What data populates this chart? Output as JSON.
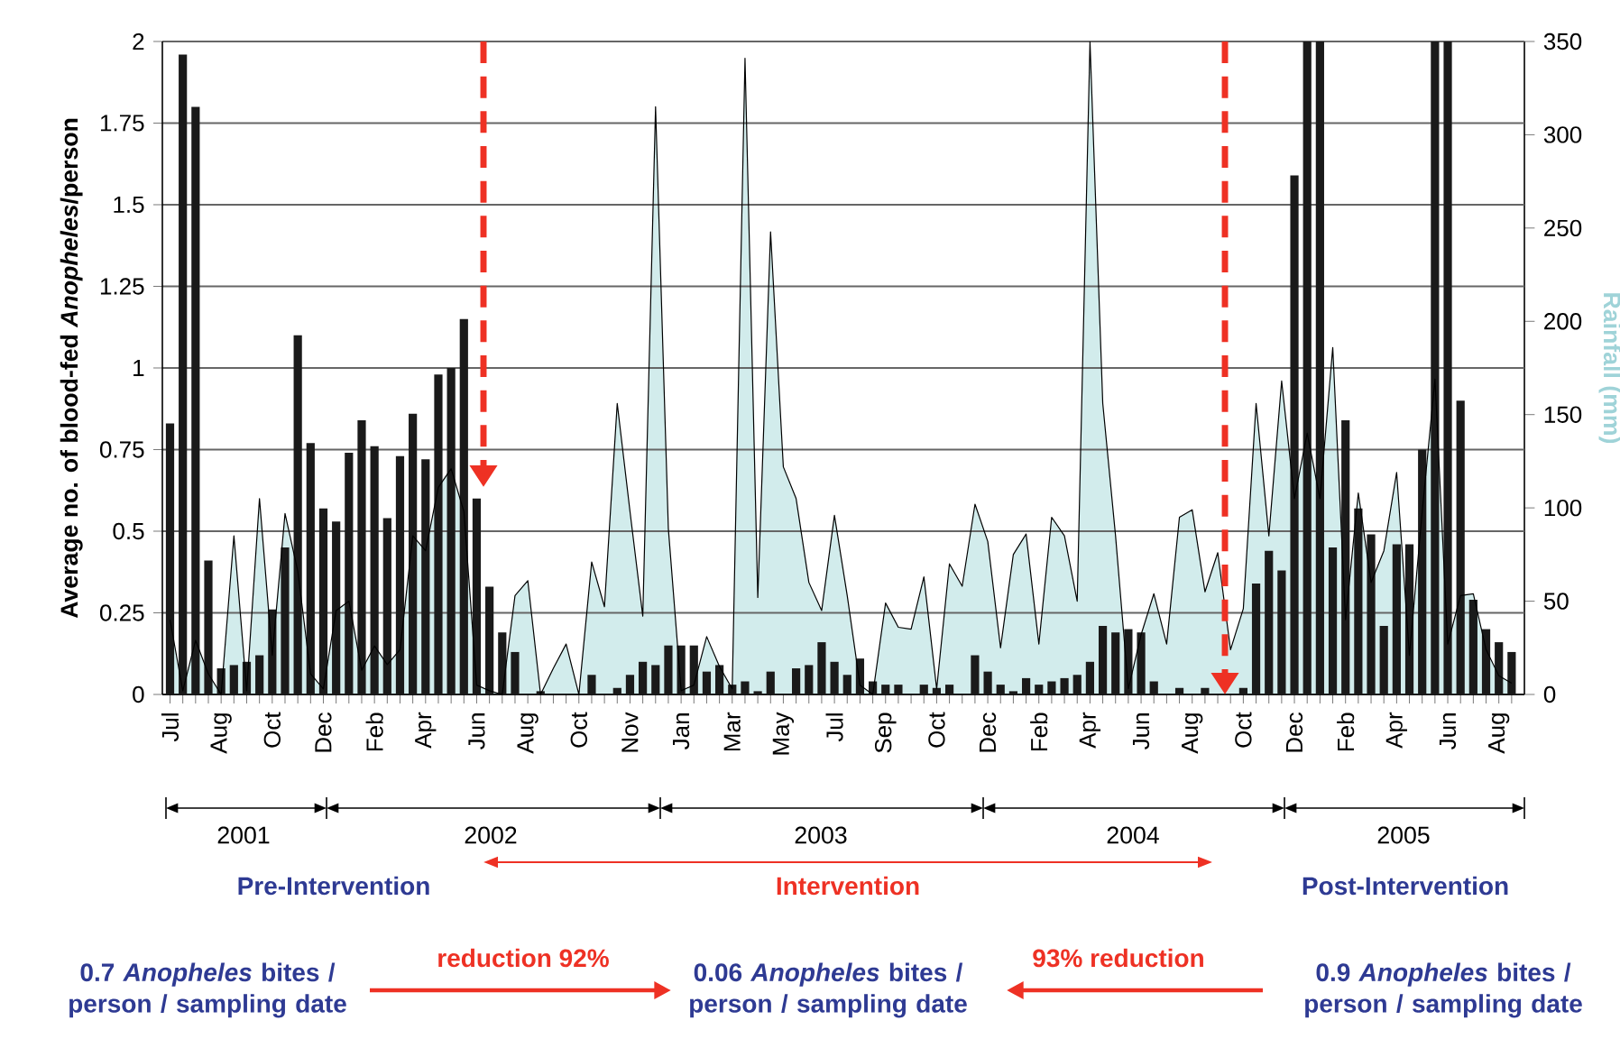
{
  "chart_data": {
    "type": "bar",
    "ylabel": "Average no. of blood-fed *Anopheles*/person",
    "y2label": "Rainfall (mm)",
    "categories": [
      "Jul",
      null,
      null,
      null,
      "Aug",
      null,
      null,
      null,
      "Oct",
      null,
      null,
      null,
      "Dec",
      null,
      null,
      null,
      "Feb",
      null,
      null,
      null,
      "Apr",
      null,
      null,
      null,
      "Jun",
      null,
      null,
      null,
      "Aug",
      null,
      null,
      null,
      "Oct",
      null,
      null,
      null,
      "Nov",
      null,
      null,
      null,
      "Jan",
      null,
      null,
      null,
      "Mar",
      null,
      null,
      null,
      "May",
      null,
      null,
      null,
      "Jul",
      null,
      null,
      null,
      "Sep",
      null,
      null,
      null,
      "Oct",
      null,
      null,
      null,
      "Dec",
      null,
      null,
      null,
      "Feb",
      null,
      null,
      null,
      "Apr",
      null,
      null,
      null,
      "Jun",
      null,
      null,
      null,
      "Aug",
      null,
      null,
      null,
      "Oct",
      null,
      null,
      null,
      "Dec",
      null,
      null,
      null,
      "Feb",
      null,
      null,
      null,
      "Apr",
      null,
      null,
      null,
      "Jun",
      null,
      null,
      null,
      "Aug",
      null
    ],
    "series": [
      {
        "type": "area",
        "axis": "y2",
        "color": "#d2ecec",
        "values": [
          40,
          2,
          29,
          11,
          0,
          85,
          2,
          105,
          21,
          97,
          66,
          11,
          3,
          45,
          50,
          13,
          26,
          16,
          24,
          85,
          77,
          111,
          121,
          98,
          5,
          2,
          0,
          53,
          61,
          0,
          14,
          27,
          0,
          71,
          47,
          156,
          98,
          42,
          315,
          89,
          2,
          5,
          31,
          15,
          3,
          341,
          52,
          248,
          122,
          105,
          60,
          45,
          96,
          53,
          5,
          0,
          49,
          36,
          35,
          63,
          3,
          70,
          58,
          102,
          82,
          25,
          75,
          86,
          27,
          95,
          85,
          50,
          350,
          156,
          85,
          3,
          32,
          54,
          27,
          95,
          99,
          55,
          76,
          24,
          46,
          156,
          85,
          168,
          105,
          140,
          105,
          186,
          40,
          108,
          60,
          77,
          119,
          21,
          98,
          169,
          27,
          53,
          54,
          24,
          10,
          6
        ]
      },
      {
        "color": "#1a1a1a",
        "values": [
          0.83,
          1.96,
          1.8,
          0.41,
          0.08,
          0.09,
          0.1,
          0.12,
          0.26,
          0.45,
          1.1,
          0.77,
          0.57,
          0.53,
          0.74,
          0.84,
          0.76,
          0.54,
          0.73,
          0.86,
          0.72,
          0.98,
          1.0,
          1.15,
          0.6,
          0.33,
          0.19,
          0.13,
          0,
          0.01,
          0,
          0,
          0,
          0.06,
          0,
          0.02,
          0.06,
          0.1,
          0.09,
          0.15,
          0.15,
          0.15,
          0.07,
          0.09,
          0.03,
          0.04,
          0.01,
          0.07,
          0,
          0.08,
          0.09,
          0.16,
          0.1,
          0.06,
          0.11,
          0.04,
          0.03,
          0.03,
          0,
          0.03,
          0.02,
          0.03,
          0,
          0.12,
          0.07,
          0.03,
          0.01,
          0.05,
          0.03,
          0.04,
          0.05,
          0.06,
          0.1,
          0.21,
          0.19,
          0.2,
          0.19,
          0.04,
          0,
          0.02,
          0,
          0.02,
          0,
          0,
          0.02,
          0.34,
          0.44,
          0.38,
          1.59,
          2,
          2,
          0.45,
          0.84,
          0.57,
          0.49,
          0.21,
          0.46,
          0.46,
          0.75,
          2,
          2,
          0.9,
          0.29,
          0.2,
          0.16,
          0.13
        ]
      }
    ],
    "ylim": [
      0,
      2
    ],
    "yticks": [
      0,
      0.25,
      0.5,
      0.75,
      1,
      1.25,
      1.5,
      1.75,
      2
    ],
    "y2lim": [
      0,
      350
    ],
    "y2ticks": [
      0,
      50,
      100,
      150,
      200,
      250,
      300,
      350
    ],
    "grid": "y",
    "annotations": [
      "2001",
      "2002",
      "2003",
      "2004",
      "2005",
      "Pre-Intervention",
      "Intervention",
      "Post-Intervention",
      "0.7 *Anopheles* bites / person / sampling date",
      "reduction 92%",
      "0.06 *Anopheles* bites / person / sampling date",
      "93% reduction",
      "0.9 *Anopheles* bites / person / sampling date"
    ]
  }
}
